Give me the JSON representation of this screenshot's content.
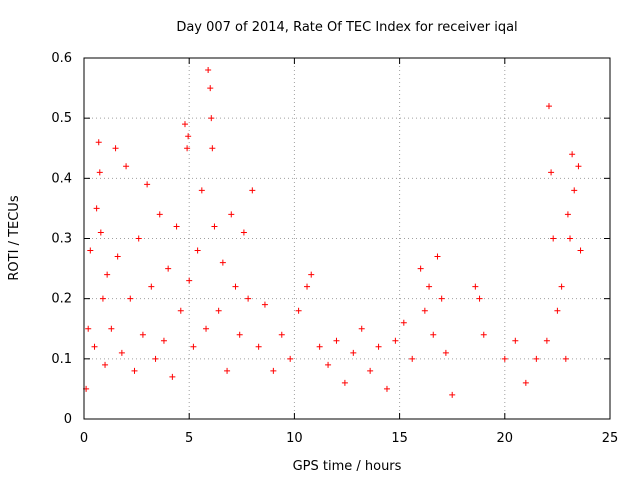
{
  "chart_data": {
    "type": "scatter",
    "title": "Day 007 of 2014, Rate Of TEC Index for receiver iqal",
    "xlabel": "GPS time / hours",
    "ylabel": "ROTI / TECUs",
    "xlim": [
      0,
      25
    ],
    "ylim": [
      0,
      0.6
    ],
    "xticks": [
      0,
      5,
      10,
      15,
      20,
      25
    ],
    "yticks": [
      0,
      0.1,
      0.2,
      0.3,
      0.4,
      0.5,
      0.6
    ],
    "xtick_labels": [
      "0",
      "5",
      "10",
      "15",
      "20",
      "25"
    ],
    "ytick_labels": [
      "0",
      "0.1",
      "0.2",
      "0.3",
      "0.4",
      "0.5",
      "0.6"
    ],
    "grid": true,
    "marker": "+",
    "color": "#ff0000",
    "series": [
      {
        "name": "ROTI",
        "x": [
          0.1,
          0.2,
          0.3,
          0.5,
          0.6,
          0.7,
          0.75,
          0.8,
          0.9,
          1.0,
          1.1,
          1.3,
          1.5,
          1.6,
          1.8,
          2.0,
          2.2,
          2.4,
          2.6,
          2.8,
          3.0,
          3.2,
          3.4,
          3.6,
          3.8,
          4.0,
          4.2,
          4.4,
          4.6,
          4.8,
          4.9,
          4.95,
          5.0,
          5.2,
          5.4,
          5.6,
          5.8,
          5.9,
          6.0,
          6.05,
          6.1,
          6.2,
          6.4,
          6.6,
          6.8,
          7.0,
          7.2,
          7.4,
          7.6,
          7.8,
          8.0,
          8.3,
          8.6,
          9.0,
          9.4,
          9.8,
          10.2,
          10.6,
          10.8,
          11.2,
          11.6,
          12.0,
          12.4,
          12.8,
          13.2,
          13.6,
          14.0,
          14.4,
          14.8,
          15.2,
          15.6,
          16.0,
          16.2,
          16.4,
          16.6,
          16.8,
          17.0,
          17.2,
          17.5,
          18.6,
          18.8,
          19.0,
          20.0,
          20.5,
          21.0,
          21.5,
          22.0,
          22.1,
          22.2,
          22.3,
          22.5,
          22.7,
          22.9,
          23.0,
          23.1,
          23.2,
          23.3,
          23.5,
          23.6
        ],
        "y": [
          0.05,
          0.15,
          0.28,
          0.12,
          0.35,
          0.46,
          0.41,
          0.31,
          0.2,
          0.09,
          0.24,
          0.15,
          0.45,
          0.27,
          0.11,
          0.42,
          0.2,
          0.08,
          0.3,
          0.14,
          0.39,
          0.22,
          0.1,
          0.34,
          0.13,
          0.25,
          0.07,
          0.32,
          0.18,
          0.49,
          0.45,
          0.47,
          0.23,
          0.12,
          0.28,
          0.38,
          0.15,
          0.58,
          0.55,
          0.5,
          0.45,
          0.32,
          0.18,
          0.26,
          0.08,
          0.34,
          0.22,
          0.14,
          0.31,
          0.2,
          0.38,
          0.12,
          0.19,
          0.08,
          0.14,
          0.1,
          0.18,
          0.22,
          0.24,
          0.12,
          0.09,
          0.13,
          0.06,
          0.11,
          0.15,
          0.08,
          0.12,
          0.05,
          0.13,
          0.16,
          0.1,
          0.25,
          0.18,
          0.22,
          0.14,
          0.27,
          0.2,
          0.11,
          0.04,
          0.22,
          0.2,
          0.14,
          0.1,
          0.13,
          0.06,
          0.1,
          0.13,
          0.52,
          0.41,
          0.3,
          0.18,
          0.22,
          0.1,
          0.34,
          0.3,
          0.44,
          0.38,
          0.42,
          0.28
        ]
      }
    ]
  }
}
